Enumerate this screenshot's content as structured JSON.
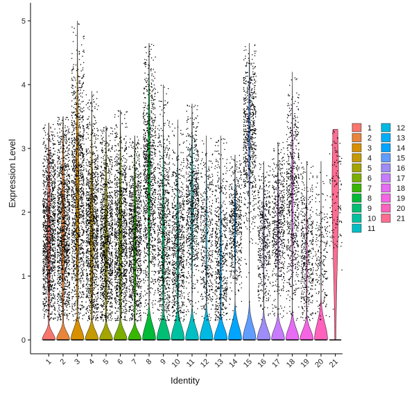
{
  "chart_data": {
    "type": "violin",
    "xlabel": "Identity",
    "ylabel": "Expression Level",
    "ylim": [
      -0.25,
      5.1
    ],
    "y_ticks": [
      "0",
      "1",
      "2",
      "3",
      "4",
      "5"
    ],
    "y_tick_values": [
      0,
      1,
      2,
      3,
      4,
      5
    ],
    "categories": [
      "1",
      "2",
      "3",
      "4",
      "5",
      "6",
      "7",
      "8",
      "9",
      "10",
      "11",
      "12",
      "13",
      "14",
      "15",
      "16",
      "17",
      "18",
      "19",
      "20",
      "21"
    ],
    "legend_position": "right",
    "colors": [
      "#F8766D",
      "#E8853A",
      "#D89000",
      "#C49A00",
      "#A3A500",
      "#7CAE00",
      "#39B600",
      "#00BA38",
      "#00BF74",
      "#00C19F",
      "#00BFC4",
      "#00B9E3",
      "#00ADFA",
      "#00A5FF",
      "#619CFF",
      "#9E8CF8",
      "#C77CFF",
      "#E76BF3",
      "#F564E3",
      "#FF62BC",
      "#FF6C91"
    ],
    "series": [
      {
        "identity": "1",
        "zero_height": 0.28,
        "max": 3.4,
        "center": 1.6,
        "spread": 0.85,
        "density": 1.0
      },
      {
        "identity": "2",
        "zero_height": 0.3,
        "max": 3.5,
        "center": 1.7,
        "spread": 0.9,
        "density": 1.0
      },
      {
        "identity": "3",
        "zero_height": 0.42,
        "max": 5.0,
        "center": 2.2,
        "spread": 1.1,
        "density": 1.0
      },
      {
        "identity": "4",
        "zero_height": 0.35,
        "max": 3.9,
        "center": 1.6,
        "spread": 0.9,
        "density": 0.95
      },
      {
        "identity": "5",
        "zero_height": 0.32,
        "max": 3.35,
        "center": 1.5,
        "spread": 0.85,
        "density": 0.9
      },
      {
        "identity": "6",
        "zero_height": 0.35,
        "max": 3.6,
        "center": 1.6,
        "spread": 0.85,
        "density": 0.9
      },
      {
        "identity": "7",
        "zero_height": 0.3,
        "max": 3.2,
        "center": 1.5,
        "spread": 0.8,
        "density": 0.85
      },
      {
        "identity": "8",
        "zero_height": 0.55,
        "max": 4.65,
        "center": 2.5,
        "spread": 0.95,
        "density": 0.8
      },
      {
        "identity": "9",
        "zero_height": 0.52,
        "max": 4.0,
        "center": 1.5,
        "spread": 0.9,
        "density": 0.65
      },
      {
        "identity": "10",
        "zero_height": 0.55,
        "max": 3.45,
        "center": 1.4,
        "spread": 0.8,
        "density": 0.6
      },
      {
        "identity": "11",
        "zero_height": 0.5,
        "max": 3.7,
        "center": 2.1,
        "spread": 0.7,
        "density": 0.6
      },
      {
        "identity": "12",
        "zero_height": 0.55,
        "max": 3.2,
        "center": 1.6,
        "spread": 0.7,
        "density": 0.35
      },
      {
        "identity": "13",
        "zero_height": 0.45,
        "max": 3.2,
        "center": 1.2,
        "spread": 0.8,
        "density": 0.45
      },
      {
        "identity": "14",
        "zero_height": 0.55,
        "max": 2.9,
        "center": 1.8,
        "spread": 0.55,
        "density": 0.4
      },
      {
        "identity": "15",
        "zero_height": 0.55,
        "max": 4.65,
        "center": 3.2,
        "spread": 0.65,
        "density": 0.55
      },
      {
        "identity": "16",
        "zero_height": 0.45,
        "max": 2.8,
        "center": 1.6,
        "spread": 0.6,
        "density": 0.35
      },
      {
        "identity": "17",
        "zero_height": 0.42,
        "max": 3.1,
        "center": 1.8,
        "spread": 0.6,
        "density": 0.45
      },
      {
        "identity": "18",
        "zero_height": 0.45,
        "max": 4.2,
        "center": 2.2,
        "spread": 0.85,
        "density": 0.5
      },
      {
        "identity": "19",
        "zero_height": 0.4,
        "max": 2.8,
        "center": 1.3,
        "spread": 0.7,
        "density": 0.35
      },
      {
        "identity": "20",
        "zero_height": 0.65,
        "max": 2.8,
        "center": 1.4,
        "spread": 0.6,
        "density": 0.15
      },
      {
        "identity": "21",
        "zero_height": 0.0,
        "max": 3.3,
        "center": 2.4,
        "spread": 0.6,
        "density": 0.08
      }
    ]
  }
}
